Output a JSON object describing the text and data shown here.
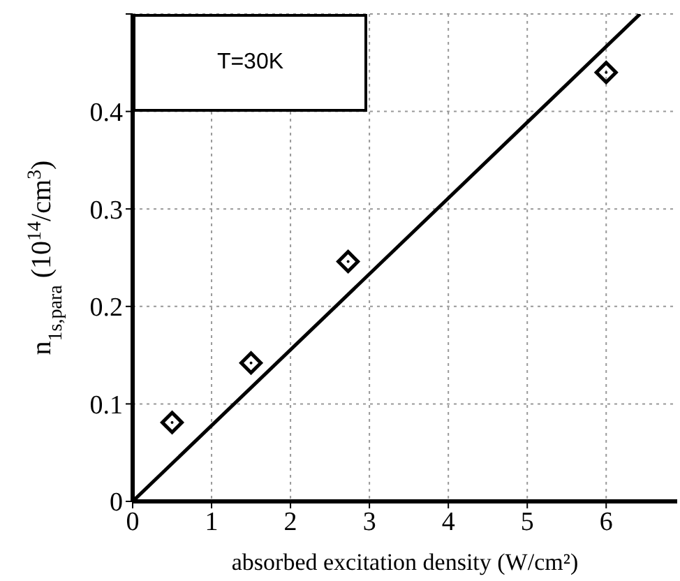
{
  "chart_data": {
    "type": "scatter",
    "xlabel": "absorbed excitation density (W/cm²)",
    "ylabel": "n$_{1s,para}$  (10$^{14}$/cm$^{3}$)",
    "annotations": [
      "T=30K"
    ],
    "series": [
      {
        "color": "#000000",
        "marker": "diamond",
        "x": [
          0.5,
          1.5,
          2.73,
          6.0
        ],
        "values": [
          0.081,
          0.142,
          0.246,
          0.44
        ]
      },
      {
        "type": "line",
        "color": "#000000",
        "marker": "none",
        "line_style": "solid",
        "x": [
          0,
          6.43
        ],
        "values": [
          0,
          0.5
        ]
      }
    ],
    "xlim": [
      0,
      6.9
    ],
    "xticks": [
      0,
      1,
      2,
      3,
      4,
      5,
      6
    ],
    "ylim": [
      0,
      0.5
    ],
    "yticks": [
      0,
      0.1,
      0.2,
      0.3,
      0.4,
      {
        "value": 0.5,
        "label": null
      }
    ],
    "grid": true
  }
}
